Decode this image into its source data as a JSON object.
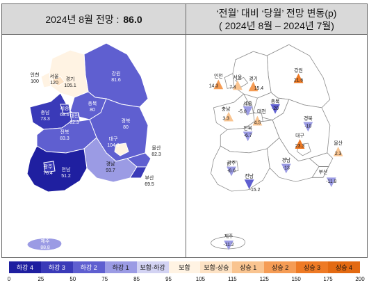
{
  "left_panel": {
    "title": "2024년 8월 전망 :",
    "value": "86.0",
    "regions": [
      {
        "key": "incheon",
        "name": "인천",
        "value": "100"
      },
      {
        "key": "seoul",
        "name": "서울",
        "value": "120"
      },
      {
        "key": "gyeonggi",
        "name": "경기",
        "value": "105.1"
      },
      {
        "key": "gangwon",
        "name": "강원",
        "value": "81.6"
      },
      {
        "key": "chungbuk",
        "name": "충북",
        "value": "80"
      },
      {
        "key": "chungnam",
        "name": "충남",
        "value": "73.3"
      },
      {
        "key": "sejong",
        "name": "세종",
        "value": "63.6"
      },
      {
        "key": "daejeon",
        "name": "대전",
        "value": "82.3"
      },
      {
        "key": "gyeongbuk",
        "name": "경북",
        "value": "80"
      },
      {
        "key": "daegu",
        "name": "대구",
        "value": "104.3"
      },
      {
        "key": "jeonbuk",
        "name": "전북",
        "value": "83.3"
      },
      {
        "key": "gyeongnam",
        "name": "경남",
        "value": "93.7"
      },
      {
        "key": "ulsan",
        "name": "울산",
        "value": "82.3"
      },
      {
        "key": "busan",
        "name": "부산",
        "value": "69.5"
      },
      {
        "key": "gwangju",
        "name": "광주",
        "value": "76.4"
      },
      {
        "key": "jeonnam",
        "name": "전남",
        "value": "51.2"
      },
      {
        "key": "jeju",
        "name": "제주",
        "value": "88.8"
      }
    ]
  },
  "right_panel": {
    "title_line1": "‘전월’ 대비 ‘당월’ 전망 변동(p)",
    "title_line2": "( 2024년 8월 – 2024년 7월)",
    "regions": [
      {
        "key": "incheon",
        "name": "인천",
        "change": "14.3",
        "dir": "up"
      },
      {
        "key": "seoul",
        "name": "서울",
        "change": "7.4",
        "dir": "up"
      },
      {
        "key": "gyeonggi",
        "name": "경기",
        "change": "15.4",
        "dir": "up"
      },
      {
        "key": "gangwon",
        "name": "강원",
        "change": "21.6",
        "dir": "up"
      },
      {
        "key": "chungbuk",
        "name": "충북",
        "change": "-20",
        "dir": "down"
      },
      {
        "key": "chungnam",
        "name": "충남",
        "change": "3.3",
        "dir": "up"
      },
      {
        "key": "sejong",
        "name": "세종",
        "change": "-5.0",
        "dir": "down"
      },
      {
        "key": "daejeon",
        "name": "대전",
        "change": "4.5",
        "dir": "up"
      },
      {
        "key": "gyeongbuk",
        "name": "경북",
        "change": "-10",
        "dir": "down"
      },
      {
        "key": "daegu",
        "name": "대구",
        "change": "23.3",
        "dir": "up"
      },
      {
        "key": "jeonbuk",
        "name": "전북",
        "change": "-6.7",
        "dir": "down"
      },
      {
        "key": "gyeongnam",
        "name": "경남",
        "change": "-13",
        "dir": "down"
      },
      {
        "key": "ulsan",
        "name": "울산",
        "change": "2.3",
        "dir": "up"
      },
      {
        "key": "busan",
        "name": "부산",
        "change": "-11.8",
        "dir": "down"
      },
      {
        "key": "gwangju",
        "name": "광주",
        "change": "-6.6",
        "dir": "down"
      },
      {
        "key": "jeonnam",
        "name": "전남",
        "change": "-15.2",
        "dir": "down"
      },
      {
        "key": "jeju",
        "name": "제주",
        "change": "-11.2",
        "dir": "down"
      }
    ]
  },
  "legend": {
    "items": [
      {
        "label": "하강 4",
        "color": "#1f1fa0",
        "text": "#ffffff"
      },
      {
        "label": "하강 3",
        "color": "#3a3ab8",
        "text": "#ffffff"
      },
      {
        "label": "하강 2",
        "color": "#5f5fd0",
        "text": "#ffffff"
      },
      {
        "label": "하강 1",
        "color": "#9b9be4",
        "text": "#111111"
      },
      {
        "label": "보합-하강",
        "color": "#d3d3f3",
        "text": "#111111"
      },
      {
        "label": "보합",
        "color": "#fff3e3",
        "text": "#111111"
      },
      {
        "label": "보합-상승",
        "color": "#fde2c4",
        "text": "#111111"
      },
      {
        "label": "상승 1",
        "color": "#f9c490",
        "text": "#111111"
      },
      {
        "label": "상승 2",
        "color": "#f59c55",
        "text": "#111111"
      },
      {
        "label": "상승 3",
        "color": "#ee7a25",
        "text": "#111111"
      },
      {
        "label": "상승 4",
        "color": "#e36a12",
        "text": "#111111"
      }
    ],
    "ticks": [
      "0",
      "25",
      "50",
      "75",
      "85",
      "95",
      "105",
      "115",
      "125",
      "150",
      "175",
      "200"
    ]
  }
}
